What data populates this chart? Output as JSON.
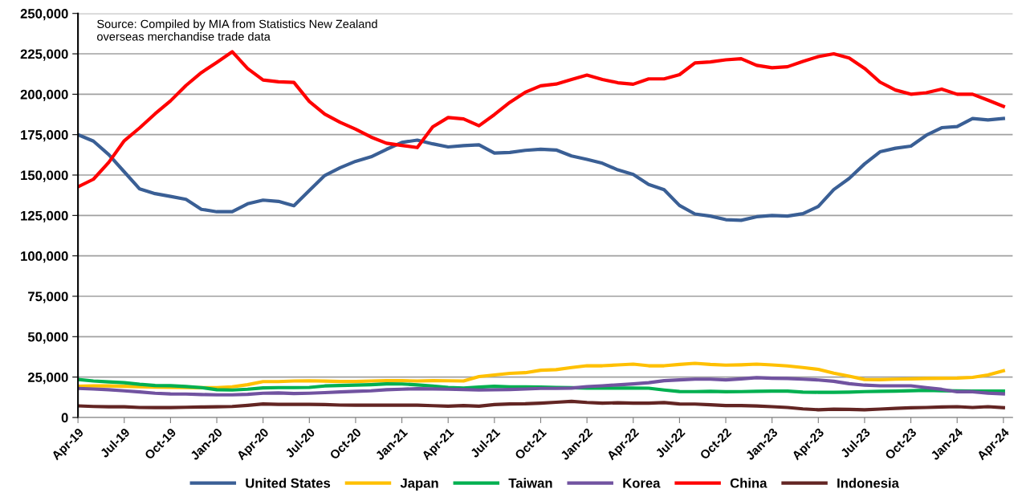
{
  "chart_data": {
    "type": "line",
    "categories": [
      "Apr-19",
      null,
      null,
      "Jul-19",
      null,
      null,
      "Oct-19",
      null,
      null,
      "Jan-20",
      null,
      null,
      "Apr-20",
      null,
      null,
      "Jul-20",
      null,
      null,
      "Oct-20",
      null,
      null,
      "Jan-21",
      null,
      null,
      "Apr-21",
      null,
      null,
      "Jul-21",
      null,
      null,
      "Oct-21",
      null,
      null,
      "Jan-22",
      null,
      null,
      "Apr-22",
      null,
      null,
      "Jul-22",
      null,
      null,
      "Oct-22",
      null,
      null,
      "Jan-23",
      null,
      null,
      "Apr-23",
      null,
      null,
      "Jul-23",
      null,
      null,
      "Oct-23",
      null,
      null,
      "Jan-24",
      null,
      null,
      "Apr-24"
    ],
    "series": [
      {
        "name": "United States",
        "color": "#3a5f95",
        "values": [
          175000,
          171000,
          162600,
          152000,
          141400,
          138500,
          136800,
          135000,
          128800,
          127300,
          127300,
          132200,
          134500,
          133700,
          131000,
          140400,
          149700,
          154500,
          158500,
          161300,
          165900,
          170200,
          171600,
          169300,
          167400,
          168200,
          168700,
          163600,
          164000,
          165300,
          166000,
          165500,
          161800,
          159700,
          157300,
          153200,
          150400,
          144200,
          140900,
          131200,
          125900,
          124600,
          122400,
          122000,
          124200,
          125000,
          124600,
          126100,
          130600,
          141000,
          147900,
          156900,
          164400,
          166600,
          167900,
          174600,
          179300,
          180000,
          185000,
          184100,
          185000
        ]
      },
      {
        "name": "Japan",
        "color": "#ffc000",
        "values": [
          19300,
          19500,
          19500,
          19300,
          19000,
          18800,
          18600,
          18500,
          18400,
          18500,
          19000,
          20300,
          22200,
          22200,
          22600,
          22700,
          22500,
          22300,
          22300,
          22600,
          22800,
          22800,
          22600,
          22800,
          22700,
          22600,
          25300,
          26300,
          27300,
          27700,
          29200,
          29600,
          30900,
          32000,
          32000,
          32500,
          33000,
          32000,
          32000,
          32800,
          33500,
          32800,
          32400,
          32600,
          33000,
          32500,
          31900,
          30900,
          29800,
          27400,
          25600,
          23500,
          23400,
          23700,
          23900,
          24100,
          24300,
          24400,
          24800,
          26300,
          28900
        ]
      },
      {
        "name": "Taiwan",
        "color": "#00b050",
        "values": [
          23500,
          22600,
          22000,
          21500,
          20500,
          19800,
          19700,
          19200,
          18500,
          17200,
          17000,
          17500,
          18300,
          18500,
          18500,
          18600,
          19500,
          19800,
          20000,
          20300,
          20800,
          20700,
          20200,
          19500,
          18600,
          18200,
          18800,
          19300,
          19000,
          18900,
          18800,
          18600,
          18400,
          18200,
          18200,
          18200,
          18200,
          18100,
          17000,
          16100,
          16000,
          16200,
          15900,
          16000,
          16200,
          16300,
          16300,
          15700,
          15600,
          15600,
          15700,
          16000,
          16200,
          16300,
          16600,
          16800,
          16600,
          16400,
          16300,
          16300,
          16300
        ]
      },
      {
        "name": "Korea",
        "color": "#7153a0",
        "values": [
          18000,
          17600,
          17200,
          16500,
          15800,
          15000,
          14600,
          14500,
          14200,
          14000,
          14000,
          14300,
          15000,
          15200,
          14800,
          15000,
          15400,
          15800,
          16200,
          16500,
          17200,
          17500,
          17800,
          17700,
          17500,
          17300,
          17000,
          17100,
          17300,
          17600,
          18000,
          18000,
          18200,
          19100,
          19600,
          20200,
          20800,
          21500,
          22800,
          23300,
          23700,
          23700,
          23300,
          23900,
          24600,
          24300,
          24100,
          23700,
          23200,
          22400,
          20900,
          20000,
          19600,
          19600,
          19600,
          18500,
          17400,
          15900,
          15900,
          15100,
          14600
        ]
      },
      {
        "name": "China",
        "color": "#ff0000",
        "values": [
          142700,
          147400,
          157900,
          171200,
          179200,
          187900,
          195900,
          205400,
          213400,
          219700,
          226300,
          215900,
          208800,
          207700,
          207300,
          195500,
          187700,
          182600,
          178400,
          173500,
          169700,
          168300,
          167000,
          179800,
          185600,
          184700,
          180500,
          187400,
          195000,
          201200,
          205200,
          206300,
          209100,
          211800,
          209100,
          207100,
          206200,
          209500,
          209500,
          212100,
          219400,
          220000,
          221300,
          222000,
          217900,
          216400,
          217000,
          220300,
          223300,
          225000,
          222400,
          216000,
          207500,
          202600,
          200000,
          200900,
          203200,
          200000,
          200000,
          196300,
          192500
        ]
      },
      {
        "name": "Indonesia",
        "color": "#632523",
        "values": [
          7200,
          6800,
          6600,
          6600,
          6200,
          6100,
          6100,
          6300,
          6500,
          6600,
          6800,
          7500,
          8400,
          8100,
          8100,
          8100,
          8000,
          7700,
          7600,
          7600,
          7600,
          7600,
          7600,
          7300,
          7000,
          7400,
          7000,
          8000,
          8400,
          8500,
          8900,
          9400,
          10000,
          9300,
          8900,
          9100,
          8900,
          8900,
          9200,
          8400,
          8300,
          7900,
          7400,
          7400,
          7100,
          6700,
          6200,
          5300,
          4800,
          5100,
          5000,
          4800,
          5200,
          5600,
          6000,
          6200,
          6500,
          6700,
          6200,
          6700,
          6100
        ]
      }
    ],
    "ylim": [
      0,
      250000
    ],
    "yticks": [
      0,
      {
        "value": 25000,
        "label": "25,000"
      },
      {
        "value": 50000,
        "label": "50,000"
      },
      {
        "value": 75000,
        "label": "75,000"
      },
      {
        "value": 100000,
        "label": "100,000"
      },
      {
        "value": 125000,
        "label": "125,000"
      },
      {
        "value": 150000,
        "label": "150,000"
      },
      {
        "value": 175000,
        "label": "175,000"
      },
      {
        "value": 200000,
        "label": "200,000"
      },
      {
        "value": 225000,
        "label": "225,000"
      },
      {
        "value": 250000,
        "label": "250,000"
      }
    ],
    "grid": "y",
    "legend": "bottom",
    "marker": "none",
    "line_style": "solid",
    "annotations": [
      "Source: Compiled by MIA from Statistics New Zealand\noverseas merchandise trade data"
    ]
  }
}
